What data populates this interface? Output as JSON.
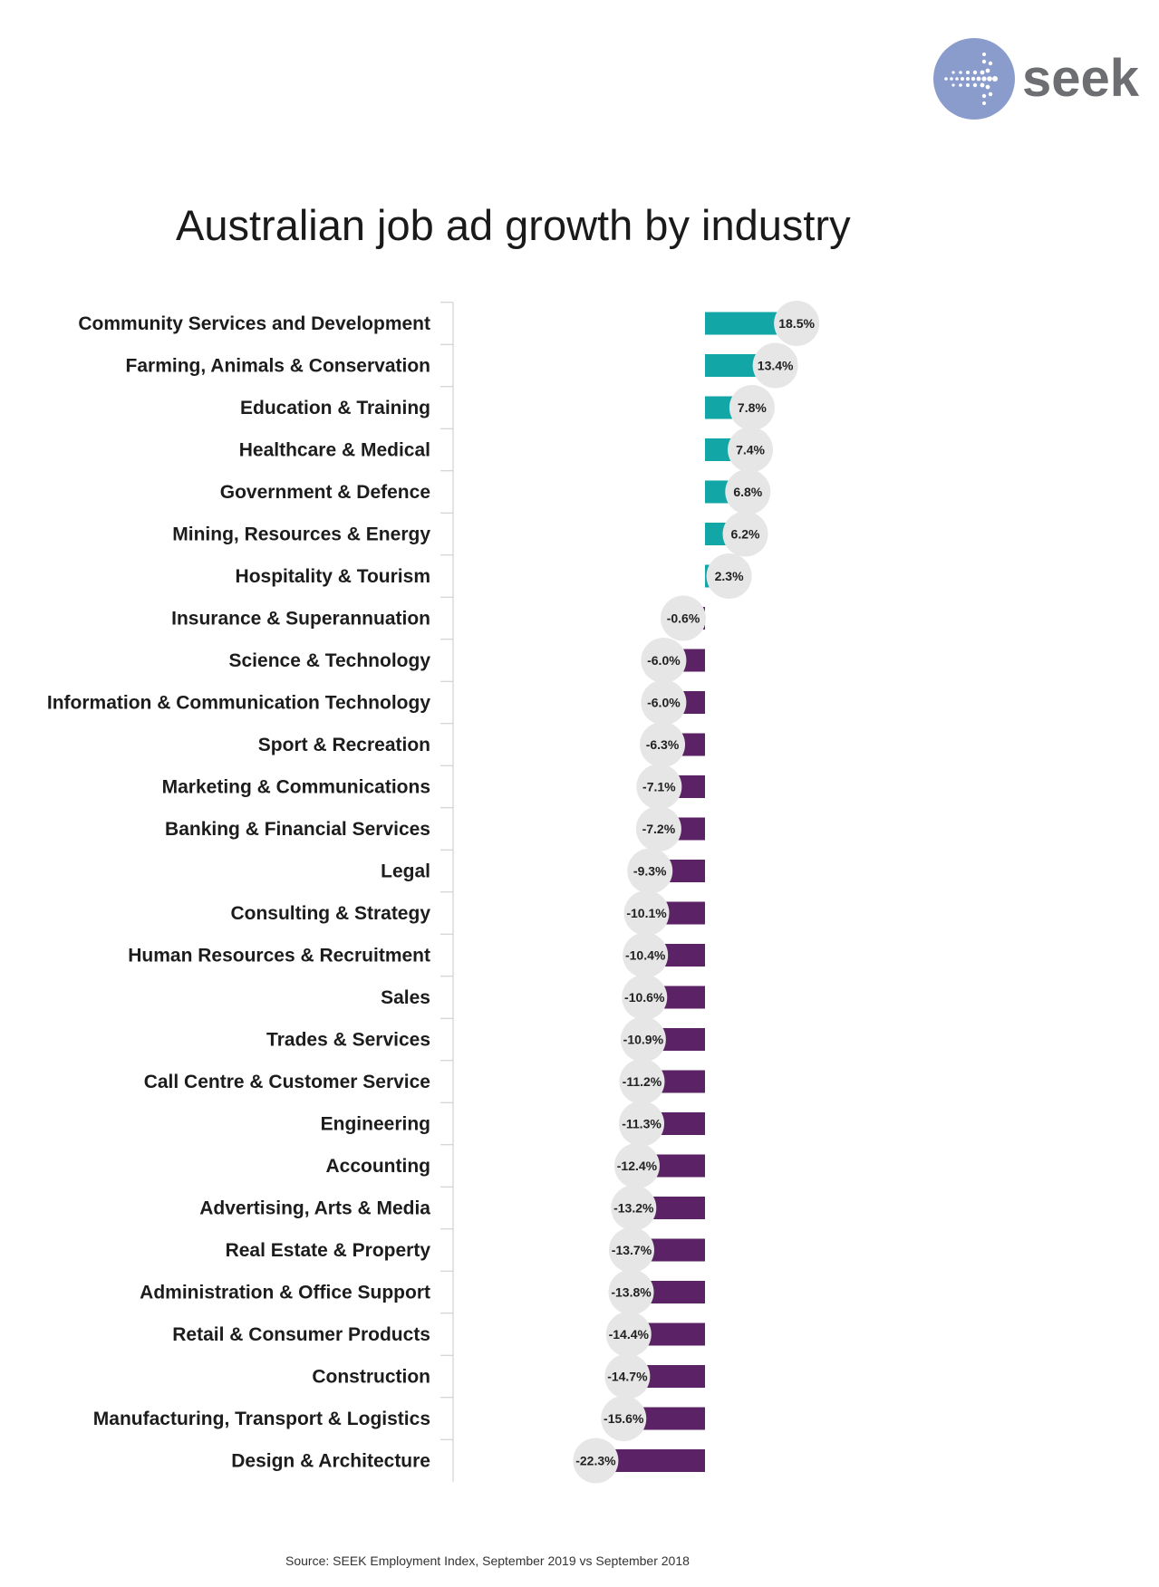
{
  "logo": {
    "text": "seek",
    "icon": "seek-logo-icon",
    "circle_color": "#8a9ccc",
    "text_color": "#6d6e71"
  },
  "chart_data": {
    "type": "bar",
    "orientation": "horizontal",
    "title": "Australian job ad growth by industry",
    "source": "Source: SEEK Employment Index, September 2019 vs September 2018",
    "xlabel": "",
    "ylabel": "",
    "xlim": [
      -22.3,
      18.5
    ],
    "grid": false,
    "positive_color": "#13a6a7",
    "negative_color": "#5b2265",
    "bubble_color": "#e6e6e6",
    "categories": [
      "Community Services and Development",
      "Farming, Animals & Conservation",
      "Education & Training",
      "Healthcare & Medical",
      "Government & Defence",
      "Mining, Resources & Energy",
      "Hospitality & Tourism",
      "Insurance & Superannuation",
      "Science & Technology",
      "Information & Communication Technology",
      "Sport & Recreation",
      "Marketing & Communications",
      "Banking & Financial Services",
      "Legal",
      "Consulting & Strategy",
      "Human Resources & Recruitment",
      "Sales",
      "Trades & Services",
      "Call Centre & Customer Service",
      "Engineering",
      "Accounting",
      "Advertising, Arts & Media",
      "Real Estate & Property",
      "Administration & Office Support",
      "Retail & Consumer Products",
      "Construction",
      "Manufacturing, Transport & Logistics",
      "Design & Architecture"
    ],
    "values": [
      18.5,
      13.4,
      7.8,
      7.4,
      6.8,
      6.2,
      2.3,
      -0.6,
      -6.0,
      -6.0,
      -6.3,
      -7.1,
      -7.2,
      -9.3,
      -10.1,
      -10.4,
      -10.6,
      -10.9,
      -11.2,
      -11.3,
      -12.4,
      -13.2,
      -13.7,
      -13.8,
      -14.4,
      -14.7,
      -15.6,
      -22.3
    ],
    "value_labels": [
      "18.5%",
      "13.4%",
      "7.8%",
      "7.4%",
      "6.8%",
      "6.2%",
      "2.3%",
      "-0.6%",
      "-6.0%",
      "-6.0%",
      "-6.3%",
      "-7.1%",
      "-7.2%",
      "-9.3%",
      "-10.1%",
      "-10.4%",
      "-10.6%",
      "-10.9%",
      "-11.2%",
      "-11.3%",
      "-12.4%",
      "-13.2%",
      "-13.7%",
      "-13.8%",
      "-14.4%",
      "-14.7%",
      "-15.6%",
      "-22.3%"
    ]
  }
}
